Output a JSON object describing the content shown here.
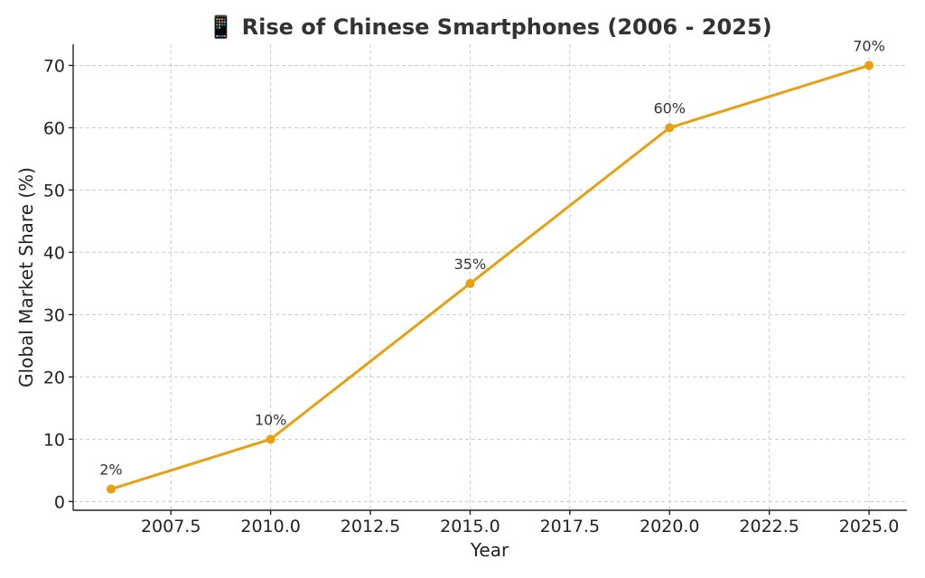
{
  "chart_data": {
    "type": "line",
    "title": "📱 Rise of Chinese Smartphones (2006 - 2025)",
    "xlabel": "Year",
    "ylabel": "Global Market Share (%)",
    "x": [
      2006,
      2010,
      2015,
      2020,
      2025
    ],
    "series": [
      {
        "values": [
          2,
          10,
          35,
          60,
          70
        ]
      }
    ],
    "data_labels": [
      "2%",
      "10%",
      "35%",
      "60%",
      "70%"
    ],
    "xticks": [
      2007.5,
      2010.0,
      2012.5,
      2015.0,
      2017.5,
      2020.0,
      2022.5,
      2025.0
    ],
    "xtick_labels": [
      "2007.5",
      "2010.0",
      "2012.5",
      "2015.0",
      "2017.5",
      "2020.0",
      "2022.5",
      "2025.0"
    ],
    "yticks": [
      0,
      10,
      20,
      30,
      40,
      50,
      60,
      70
    ],
    "xlim": [
      2005.05,
      2025.95
    ],
    "ylim": [
      -1.4,
      73.4
    ],
    "grid": true,
    "legend": "none",
    "line_color": "#e6a010"
  }
}
